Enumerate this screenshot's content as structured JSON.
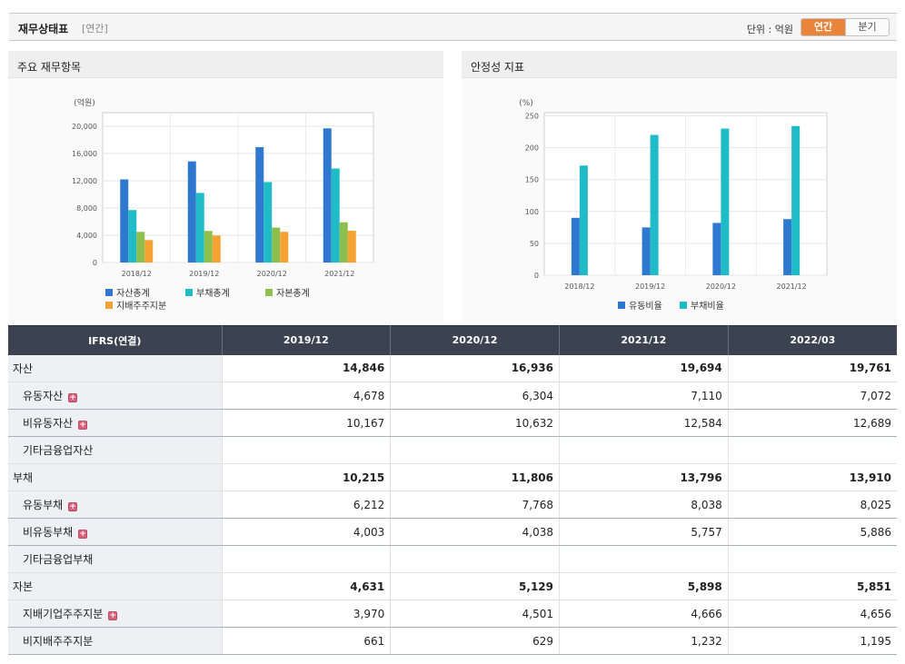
{
  "header": {
    "title": "재무상태표",
    "subtitle": "[연간]",
    "unit_label": "단위 : 억원",
    "toggle": {
      "annual": "연간",
      "quarterly": "분기"
    }
  },
  "panels": {
    "left_title": "주요 재무항목",
    "right_title": "안정성 지표"
  },
  "colors": {
    "asset": "#2f78d0",
    "liability": "#1fbcc7",
    "equity": "#8cbf4d",
    "controlling": "#f5a233",
    "header_bg": "#3b4350",
    "accent": "#e8853b"
  },
  "chart_data": [
    {
      "type": "bar",
      "title": "주요 재무항목",
      "ylabel": "(억원)",
      "categories": [
        "2018/12",
        "2019/12",
        "2020/12",
        "2021/12"
      ],
      "ylim": [
        0,
        22000
      ],
      "yticks": [
        0,
        4000,
        8000,
        12000,
        16000,
        20000
      ],
      "ytick_labels": [
        "0",
        "4,000",
        "8,000",
        "12,000",
        "16,000",
        "20,000"
      ],
      "grid": true,
      "legend_position": "bottom",
      "series": [
        {
          "name": "자산총계",
          "color": "#2f78d0",
          "values": [
            12200,
            14846,
            16936,
            19694
          ]
        },
        {
          "name": "부채총계",
          "color": "#1fbcc7",
          "values": [
            7700,
            10215,
            11806,
            13796
          ]
        },
        {
          "name": "자본총계",
          "color": "#8cbf4d",
          "values": [
            4500,
            4631,
            5129,
            5898
          ]
        },
        {
          "name": "지배주주지분",
          "color": "#f5a233",
          "values": [
            3300,
            3970,
            4501,
            4666
          ]
        }
      ]
    },
    {
      "type": "bar",
      "title": "안정성 지표",
      "ylabel": "(%)",
      "categories": [
        "2018/12",
        "2019/12",
        "2020/12",
        "2021/12"
      ],
      "ylim": [
        0,
        255
      ],
      "yticks": [
        0,
        50,
        100,
        150,
        200,
        250
      ],
      "ytick_labels": [
        "0",
        "50",
        "100",
        "150",
        "200",
        "250"
      ],
      "grid": true,
      "legend_position": "bottom",
      "series": [
        {
          "name": "유동비율",
          "color": "#2f78d0",
          "values": [
            90,
            75,
            82,
            88
          ]
        },
        {
          "name": "부채비율",
          "color": "#1fbcc7",
          "values": [
            172,
            220,
            230,
            234
          ]
        }
      ]
    }
  ],
  "table": {
    "header_label": "IFRS(연결)",
    "columns": [
      "2019/12",
      "2020/12",
      "2021/12",
      "2022/03"
    ],
    "rows": [
      {
        "label": "자산",
        "level": 0,
        "bold": true,
        "plus": false,
        "values": [
          "14,846",
          "16,936",
          "19,694",
          "19,761"
        ]
      },
      {
        "label": "유동자산",
        "level": 1,
        "bold": false,
        "plus": true,
        "values": [
          "4,678",
          "6,304",
          "7,110",
          "7,072"
        ]
      },
      {
        "label": "비유동자산",
        "level": 1,
        "bold": false,
        "plus": true,
        "values": [
          "10,167",
          "10,632",
          "12,584",
          "12,689"
        ]
      },
      {
        "label": "기타금융업자산",
        "level": 1,
        "bold": false,
        "plus": false,
        "values": [
          "",
          "",
          "",
          ""
        ]
      },
      {
        "label": "부채",
        "level": 0,
        "bold": true,
        "plus": false,
        "values": [
          "10,215",
          "11,806",
          "13,796",
          "13,910"
        ]
      },
      {
        "label": "유동부채",
        "level": 1,
        "bold": false,
        "plus": true,
        "values": [
          "6,212",
          "7,768",
          "8,038",
          "8,025"
        ]
      },
      {
        "label": "비유동부채",
        "level": 1,
        "bold": false,
        "plus": true,
        "values": [
          "4,003",
          "4,038",
          "5,757",
          "5,886"
        ]
      },
      {
        "label": "기타금융업부채",
        "level": 1,
        "bold": false,
        "plus": false,
        "values": [
          "",
          "",
          "",
          ""
        ]
      },
      {
        "label": "자본",
        "level": 0,
        "bold": true,
        "plus": false,
        "values": [
          "4,631",
          "5,129",
          "5,898",
          "5,851"
        ]
      },
      {
        "label": "지배기업주주지분",
        "level": 1,
        "bold": false,
        "plus": true,
        "values": [
          "3,970",
          "4,501",
          "4,666",
          "4,656"
        ]
      },
      {
        "label": "비지배주주지분",
        "level": 1,
        "bold": false,
        "plus": false,
        "values": [
          "661",
          "629",
          "1,232",
          "1,195"
        ]
      }
    ],
    "plus_icon": "plus-box-icon",
    "plus_glyph": "+"
  }
}
